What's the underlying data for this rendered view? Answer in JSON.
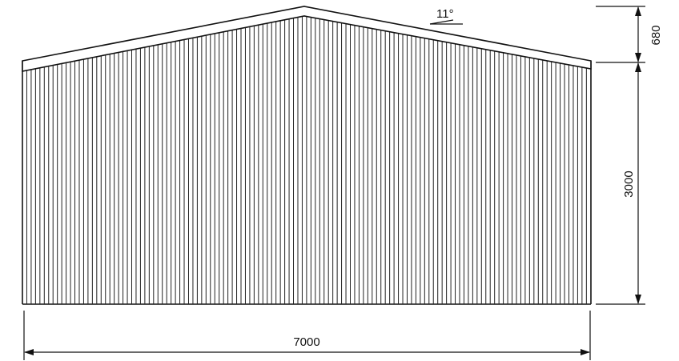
{
  "drawing": {
    "type": "building gable end elevation",
    "cladding": "vertical corrugated sheeting"
  },
  "dimensions": {
    "width": "7000",
    "wall_height": "3000",
    "gable_height": "680",
    "roof_pitch": "11°"
  },
  "colors": {
    "line": "#111111",
    "background": "#ffffff"
  }
}
